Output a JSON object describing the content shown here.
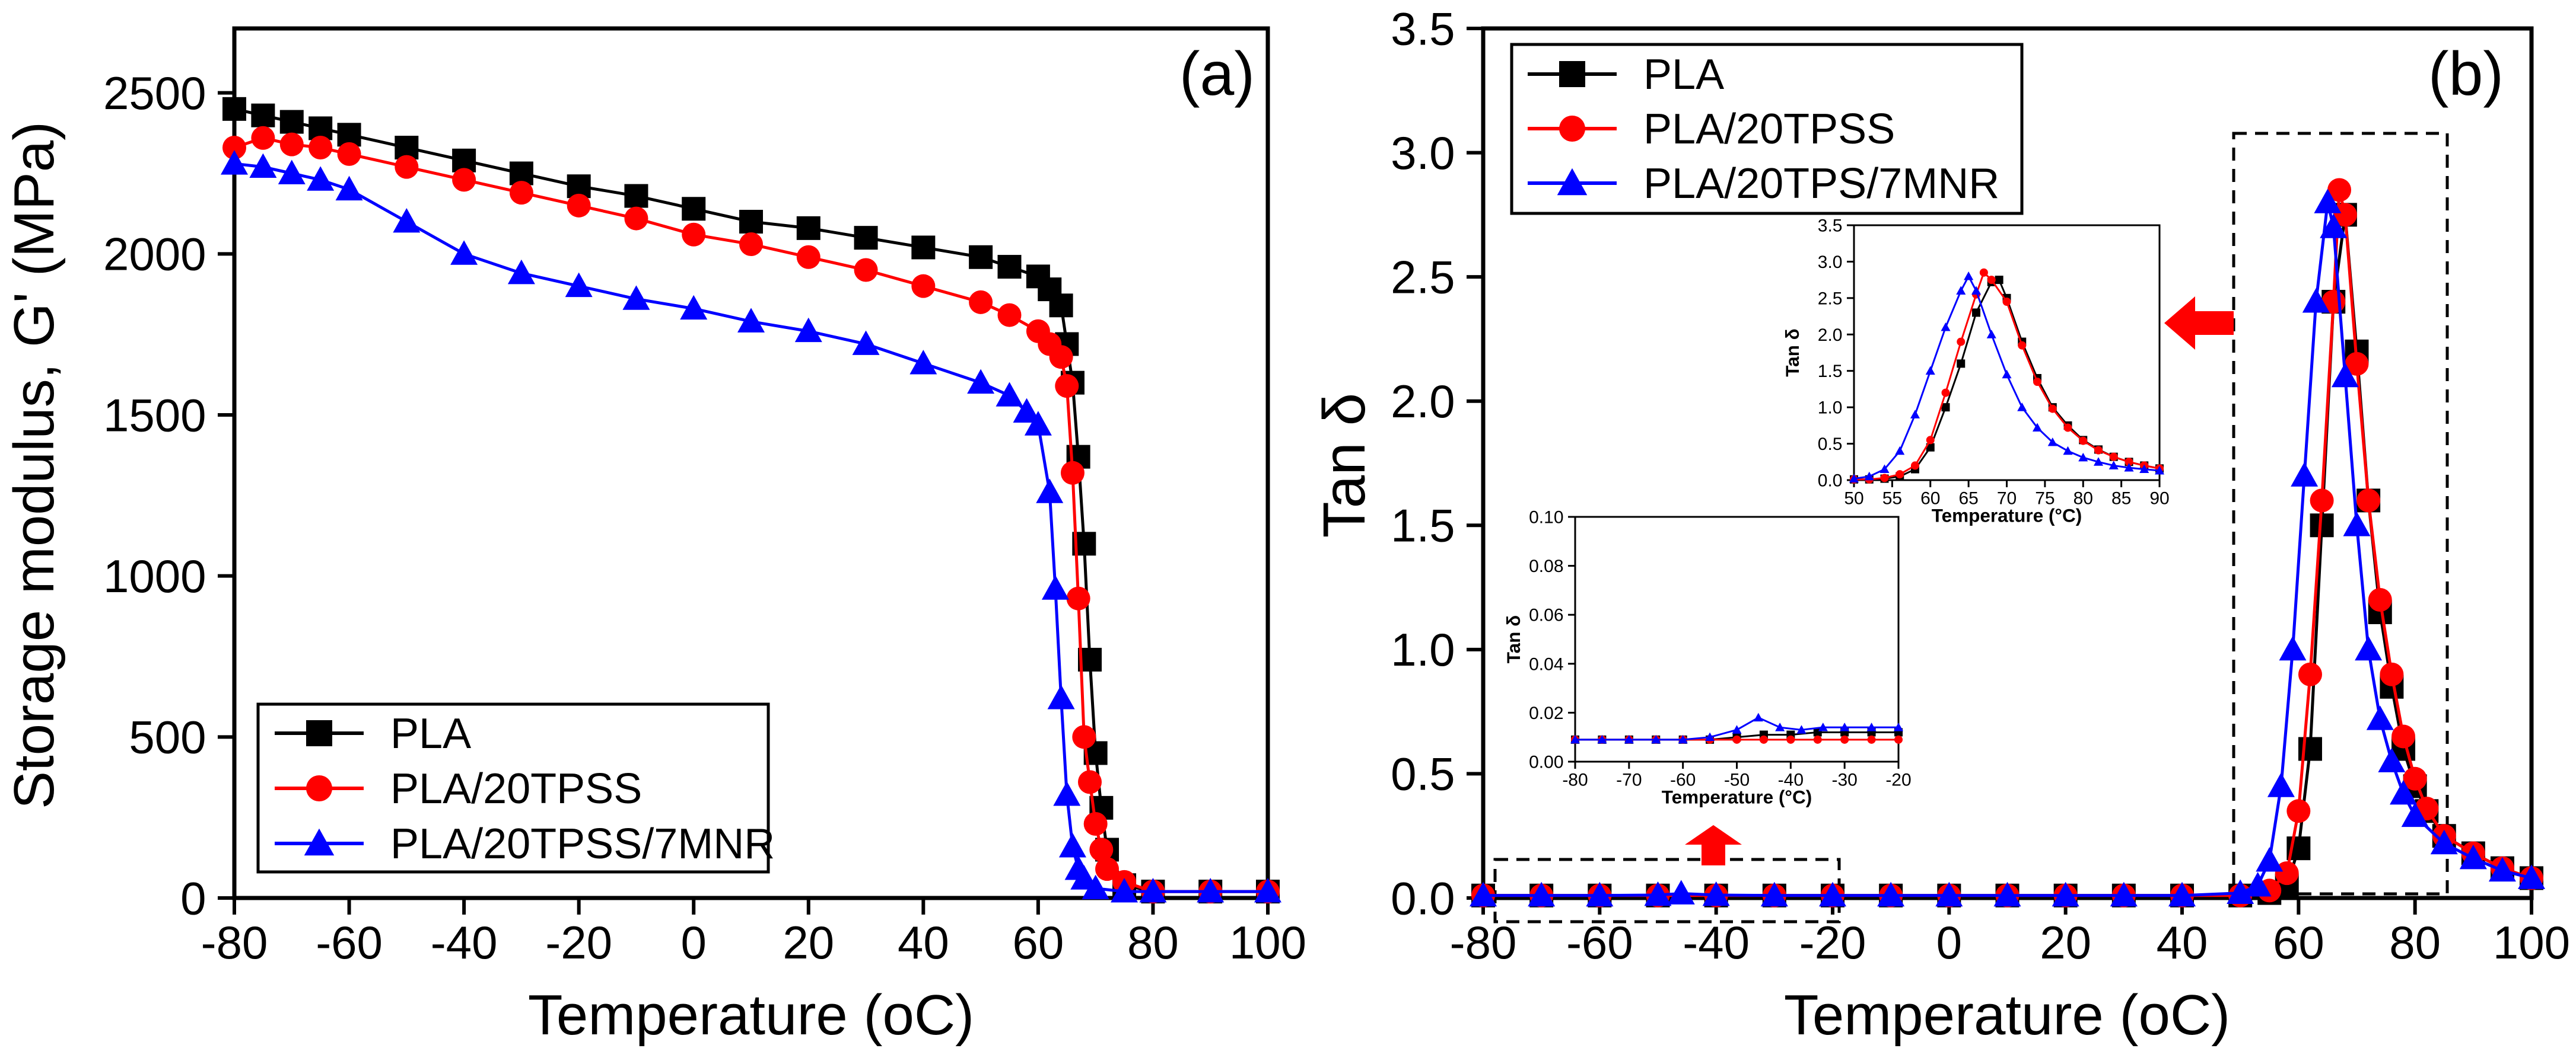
{
  "chart_data": [
    {
      "panel": "a",
      "type": "line",
      "panel_label": "(a)",
      "xlabel": "Temperature (oC)",
      "ylabel": "Storage modulus, G' (MPa)",
      "xlim": [
        -80,
        100
      ],
      "ylim": [
        0,
        2700
      ],
      "xticks": [
        -80,
        -60,
        -40,
        -20,
        0,
        20,
        40,
        60,
        80,
        100
      ],
      "yticks": [
        0,
        500,
        1000,
        1500,
        2000,
        2500
      ],
      "legend_position": "bottom-left",
      "series": [
        {
          "name": "PLA",
          "marker": "square",
          "color": "#000000",
          "x": [
            -80,
            -75,
            -70,
            -65,
            -60,
            -50,
            -40,
            -30,
            -20,
            -10,
            0,
            10,
            20,
            30,
            40,
            50,
            55,
            60,
            62,
            64,
            65,
            66,
            67,
            68,
            69,
            70,
            71,
            72,
            75,
            80,
            90,
            100
          ],
          "y": [
            2450,
            2430,
            2410,
            2390,
            2370,
            2330,
            2290,
            2250,
            2210,
            2180,
            2140,
            2100,
            2080,
            2050,
            2020,
            1990,
            1960,
            1930,
            1890,
            1840,
            1720,
            1600,
            1370,
            1100,
            740,
            450,
            280,
            150,
            40,
            20,
            20,
            20
          ]
        },
        {
          "name": "PLA/20TPSS",
          "marker": "circle",
          "color": "#ff0000",
          "x": [
            -80,
            -75,
            -70,
            -65,
            -60,
            -50,
            -40,
            -30,
            -20,
            -10,
            0,
            10,
            20,
            30,
            40,
            50,
            55,
            60,
            62,
            64,
            65,
            66,
            67,
            68,
            69,
            70,
            71,
            72,
            75,
            80,
            90,
            100
          ],
          "y": [
            2330,
            2360,
            2340,
            2330,
            2310,
            2270,
            2230,
            2190,
            2150,
            2110,
            2060,
            2030,
            1990,
            1950,
            1900,
            1850,
            1810,
            1760,
            1720,
            1680,
            1590,
            1320,
            930,
            500,
            360,
            230,
            150,
            90,
            50,
            20,
            20,
            20
          ]
        },
        {
          "name": "PLA/20TPSS/7MNR",
          "marker": "triangle",
          "color": "#0000ff",
          "x": [
            -80,
            -75,
            -70,
            -65,
            -60,
            -50,
            -40,
            -30,
            -20,
            -10,
            0,
            10,
            20,
            30,
            40,
            50,
            55,
            58,
            60,
            62,
            63,
            64,
            65,
            66,
            67,
            68,
            70,
            75,
            80,
            90,
            100
          ],
          "y": [
            2280,
            2270,
            2250,
            2230,
            2200,
            2100,
            2000,
            1940,
            1900,
            1860,
            1830,
            1790,
            1760,
            1720,
            1660,
            1600,
            1560,
            1510,
            1470,
            1260,
            960,
            620,
            320,
            160,
            90,
            60,
            30,
            20,
            20,
            20,
            20
          ]
        }
      ],
      "legend_labels": [
        "PLA",
        "PLA/20TPSS",
        "PLA/20TPSS/7MNR"
      ]
    },
    {
      "panel": "b",
      "type": "line",
      "panel_label": "(b)",
      "xlabel": "Temperature (oC)",
      "ylabel": "Tan δ",
      "xlim": [
        -80,
        100
      ],
      "ylim": [
        0,
        3.5
      ],
      "xticks": [
        -80,
        -60,
        -40,
        -20,
        0,
        20,
        40,
        60,
        80,
        100
      ],
      "yticks": [
        0.0,
        0.5,
        1.0,
        1.5,
        2.0,
        2.5,
        3.0,
        3.5
      ],
      "ytick_labels": [
        "0.0",
        "0.5",
        "1.0",
        "1.5",
        "2.0",
        "2.5",
        "3.0",
        "3.5"
      ],
      "legend_position": "top-left",
      "series": [
        {
          "name": "PLA",
          "marker": "square",
          "color": "#000000",
          "x": [
            -80,
            -70,
            -60,
            -50,
            -40,
            -30,
            -20,
            -10,
            0,
            10,
            20,
            30,
            40,
            50,
            55,
            58,
            60,
            62,
            64,
            66,
            68,
            70,
            72,
            74,
            76,
            78,
            80,
            82,
            85,
            90,
            95,
            100
          ],
          "y": [
            0.01,
            0.01,
            0.01,
            0.01,
            0.01,
            0.01,
            0.01,
            0.01,
            0.01,
            0.01,
            0.01,
            0.01,
            0.01,
            0.01,
            0.02,
            0.05,
            0.2,
            0.6,
            1.5,
            2.4,
            2.75,
            2.2,
            1.6,
            1.15,
            0.85,
            0.6,
            0.45,
            0.35,
            0.25,
            0.18,
            0.12,
            0.08
          ]
        },
        {
          "name": "PLA/20TPSS",
          "marker": "circle",
          "color": "#ff0000",
          "x": [
            -80,
            -70,
            -60,
            -50,
            -40,
            -30,
            -20,
            -10,
            0,
            10,
            20,
            30,
            40,
            50,
            55,
            58,
            60,
            62,
            64,
            66,
            67,
            68,
            70,
            72,
            74,
            76,
            78,
            80,
            82,
            85,
            90,
            95,
            100
          ],
          "y": [
            0.01,
            0.01,
            0.01,
            0.01,
            0.01,
            0.01,
            0.01,
            0.01,
            0.01,
            0.01,
            0.01,
            0.01,
            0.01,
            0.01,
            0.03,
            0.1,
            0.35,
            0.9,
            1.6,
            2.4,
            2.85,
            2.75,
            2.15,
            1.6,
            1.2,
            0.9,
            0.65,
            0.48,
            0.36,
            0.25,
            0.18,
            0.12,
            0.08
          ]
        },
        {
          "name": "PLA/20TPS/7MNR",
          "marker": "triangle",
          "color": "#0000ff",
          "x": [
            -80,
            -70,
            -60,
            -50,
            -46,
            -40,
            -30,
            -20,
            -10,
            0,
            10,
            20,
            30,
            40,
            50,
            53,
            55,
            57,
            59,
            61,
            63,
            65,
            66,
            68,
            70,
            72,
            74,
            76,
            78,
            80,
            85,
            90,
            95,
            100
          ],
          "y": [
            0.01,
            0.01,
            0.01,
            0.012,
            0.018,
            0.012,
            0.01,
            0.01,
            0.01,
            0.01,
            0.01,
            0.01,
            0.01,
            0.01,
            0.02,
            0.05,
            0.15,
            0.45,
            1.0,
            1.7,
            2.4,
            2.8,
            2.7,
            2.1,
            1.5,
            1.0,
            0.72,
            0.55,
            0.42,
            0.33,
            0.22,
            0.16,
            0.11,
            0.08
          ]
        }
      ],
      "legend_labels": [
        "PLA",
        "PLA/20TPSS",
        "PLA/20TPS/7MNR"
      ],
      "insets": [
        {
          "name": "peak-inset",
          "xlabel": "Temperature (°C)",
          "ylabel": "Tan δ",
          "xlim": [
            50,
            90
          ],
          "ylim": [
            0,
            3.5
          ],
          "xticks": [
            50,
            55,
            60,
            65,
            70,
            75,
            80,
            85,
            90
          ],
          "yticks": [
            0.0,
            0.5,
            1.0,
            1.5,
            2.0,
            2.5,
            3.0,
            3.5
          ],
          "ytick_labels": [
            "0.0",
            "0.5",
            "1.0",
            "1.5",
            "2.0",
            "2.5",
            "3.0",
            "3.5"
          ],
          "series": [
            {
              "name": "PLA",
              "x": [
                50,
                52,
                54,
                56,
                58,
                60,
                62,
                64,
                66,
                68,
                69,
                70,
                72,
                74,
                76,
                78,
                80,
                82,
                84,
                86,
                88,
                90
              ],
              "y": [
                0.01,
                0.01,
                0.02,
                0.05,
                0.15,
                0.45,
                1.0,
                1.6,
                2.3,
                2.72,
                2.75,
                2.5,
                1.9,
                1.4,
                1.0,
                0.75,
                0.55,
                0.42,
                0.32,
                0.25,
                0.2,
                0.16
              ]
            },
            {
              "name": "PLA/20TPSS",
              "x": [
                50,
                52,
                54,
                56,
                58,
                60,
                62,
                64,
                66,
                67,
                68,
                70,
                72,
                74,
                76,
                78,
                80,
                82,
                84,
                86,
                88,
                90
              ],
              "y": [
                0.01,
                0.01,
                0.03,
                0.08,
                0.2,
                0.55,
                1.2,
                1.9,
                2.55,
                2.85,
                2.75,
                2.45,
                1.85,
                1.35,
                0.98,
                0.72,
                0.54,
                0.41,
                0.32,
                0.25,
                0.2,
                0.16
              ]
            },
            {
              "name": "PLA/20TPS/7MNR",
              "x": [
                50,
                52,
                54,
                56,
                58,
                60,
                62,
                64,
                65,
                66,
                68,
                70,
                72,
                74,
                76,
                78,
                80,
                82,
                84,
                86,
                88,
                90
              ],
              "y": [
                0.02,
                0.05,
                0.15,
                0.4,
                0.9,
                1.5,
                2.1,
                2.6,
                2.8,
                2.6,
                2.0,
                1.45,
                1.0,
                0.72,
                0.52,
                0.4,
                0.31,
                0.25,
                0.2,
                0.17,
                0.15,
                0.13
              ]
            }
          ]
        },
        {
          "name": "low-temp-inset",
          "xlabel": "Temperature (°C)",
          "ylabel": "Tan δ",
          "xlim": [
            -80,
            -20
          ],
          "ylim": [
            0,
            0.1
          ],
          "xticks": [
            -80,
            -70,
            -60,
            -50,
            -40,
            -30,
            -20
          ],
          "yticks": [
            0.0,
            0.02,
            0.04,
            0.06,
            0.08,
            0.1
          ],
          "ytick_labels": [
            "0.00",
            "0.02",
            "0.04",
            "0.06",
            "0.08",
            "0.10"
          ],
          "series": [
            {
              "name": "PLA",
              "x": [
                -80,
                -75,
                -70,
                -65,
                -60,
                -55,
                -50,
                -45,
                -40,
                -35,
                -30,
                -25,
                -20
              ],
              "y": [
                0.009,
                0.009,
                0.009,
                0.009,
                0.009,
                0.009,
                0.01,
                0.011,
                0.011,
                0.012,
                0.012,
                0.012,
                0.012
              ]
            },
            {
              "name": "PLA/20TPSS",
              "x": [
                -80,
                -75,
                -70,
                -65,
                -60,
                -55,
                -50,
                -45,
                -40,
                -35,
                -30,
                -25,
                -20
              ],
              "y": [
                0.009,
                0.009,
                0.009,
                0.009,
                0.009,
                0.009,
                0.009,
                0.009,
                0.009,
                0.009,
                0.009,
                0.009,
                0.009
              ]
            },
            {
              "name": "PLA/20TPS/7MNR",
              "x": [
                -80,
                -75,
                -70,
                -65,
                -60,
                -55,
                -50,
                -46,
                -42,
                -38,
                -34,
                -30,
                -25,
                -20
              ],
              "y": [
                0.009,
                0.009,
                0.009,
                0.009,
                0.009,
                0.01,
                0.013,
                0.018,
                0.014,
                0.013,
                0.014,
                0.014,
                0.014,
                0.014
              ]
            }
          ]
        }
      ]
    }
  ]
}
